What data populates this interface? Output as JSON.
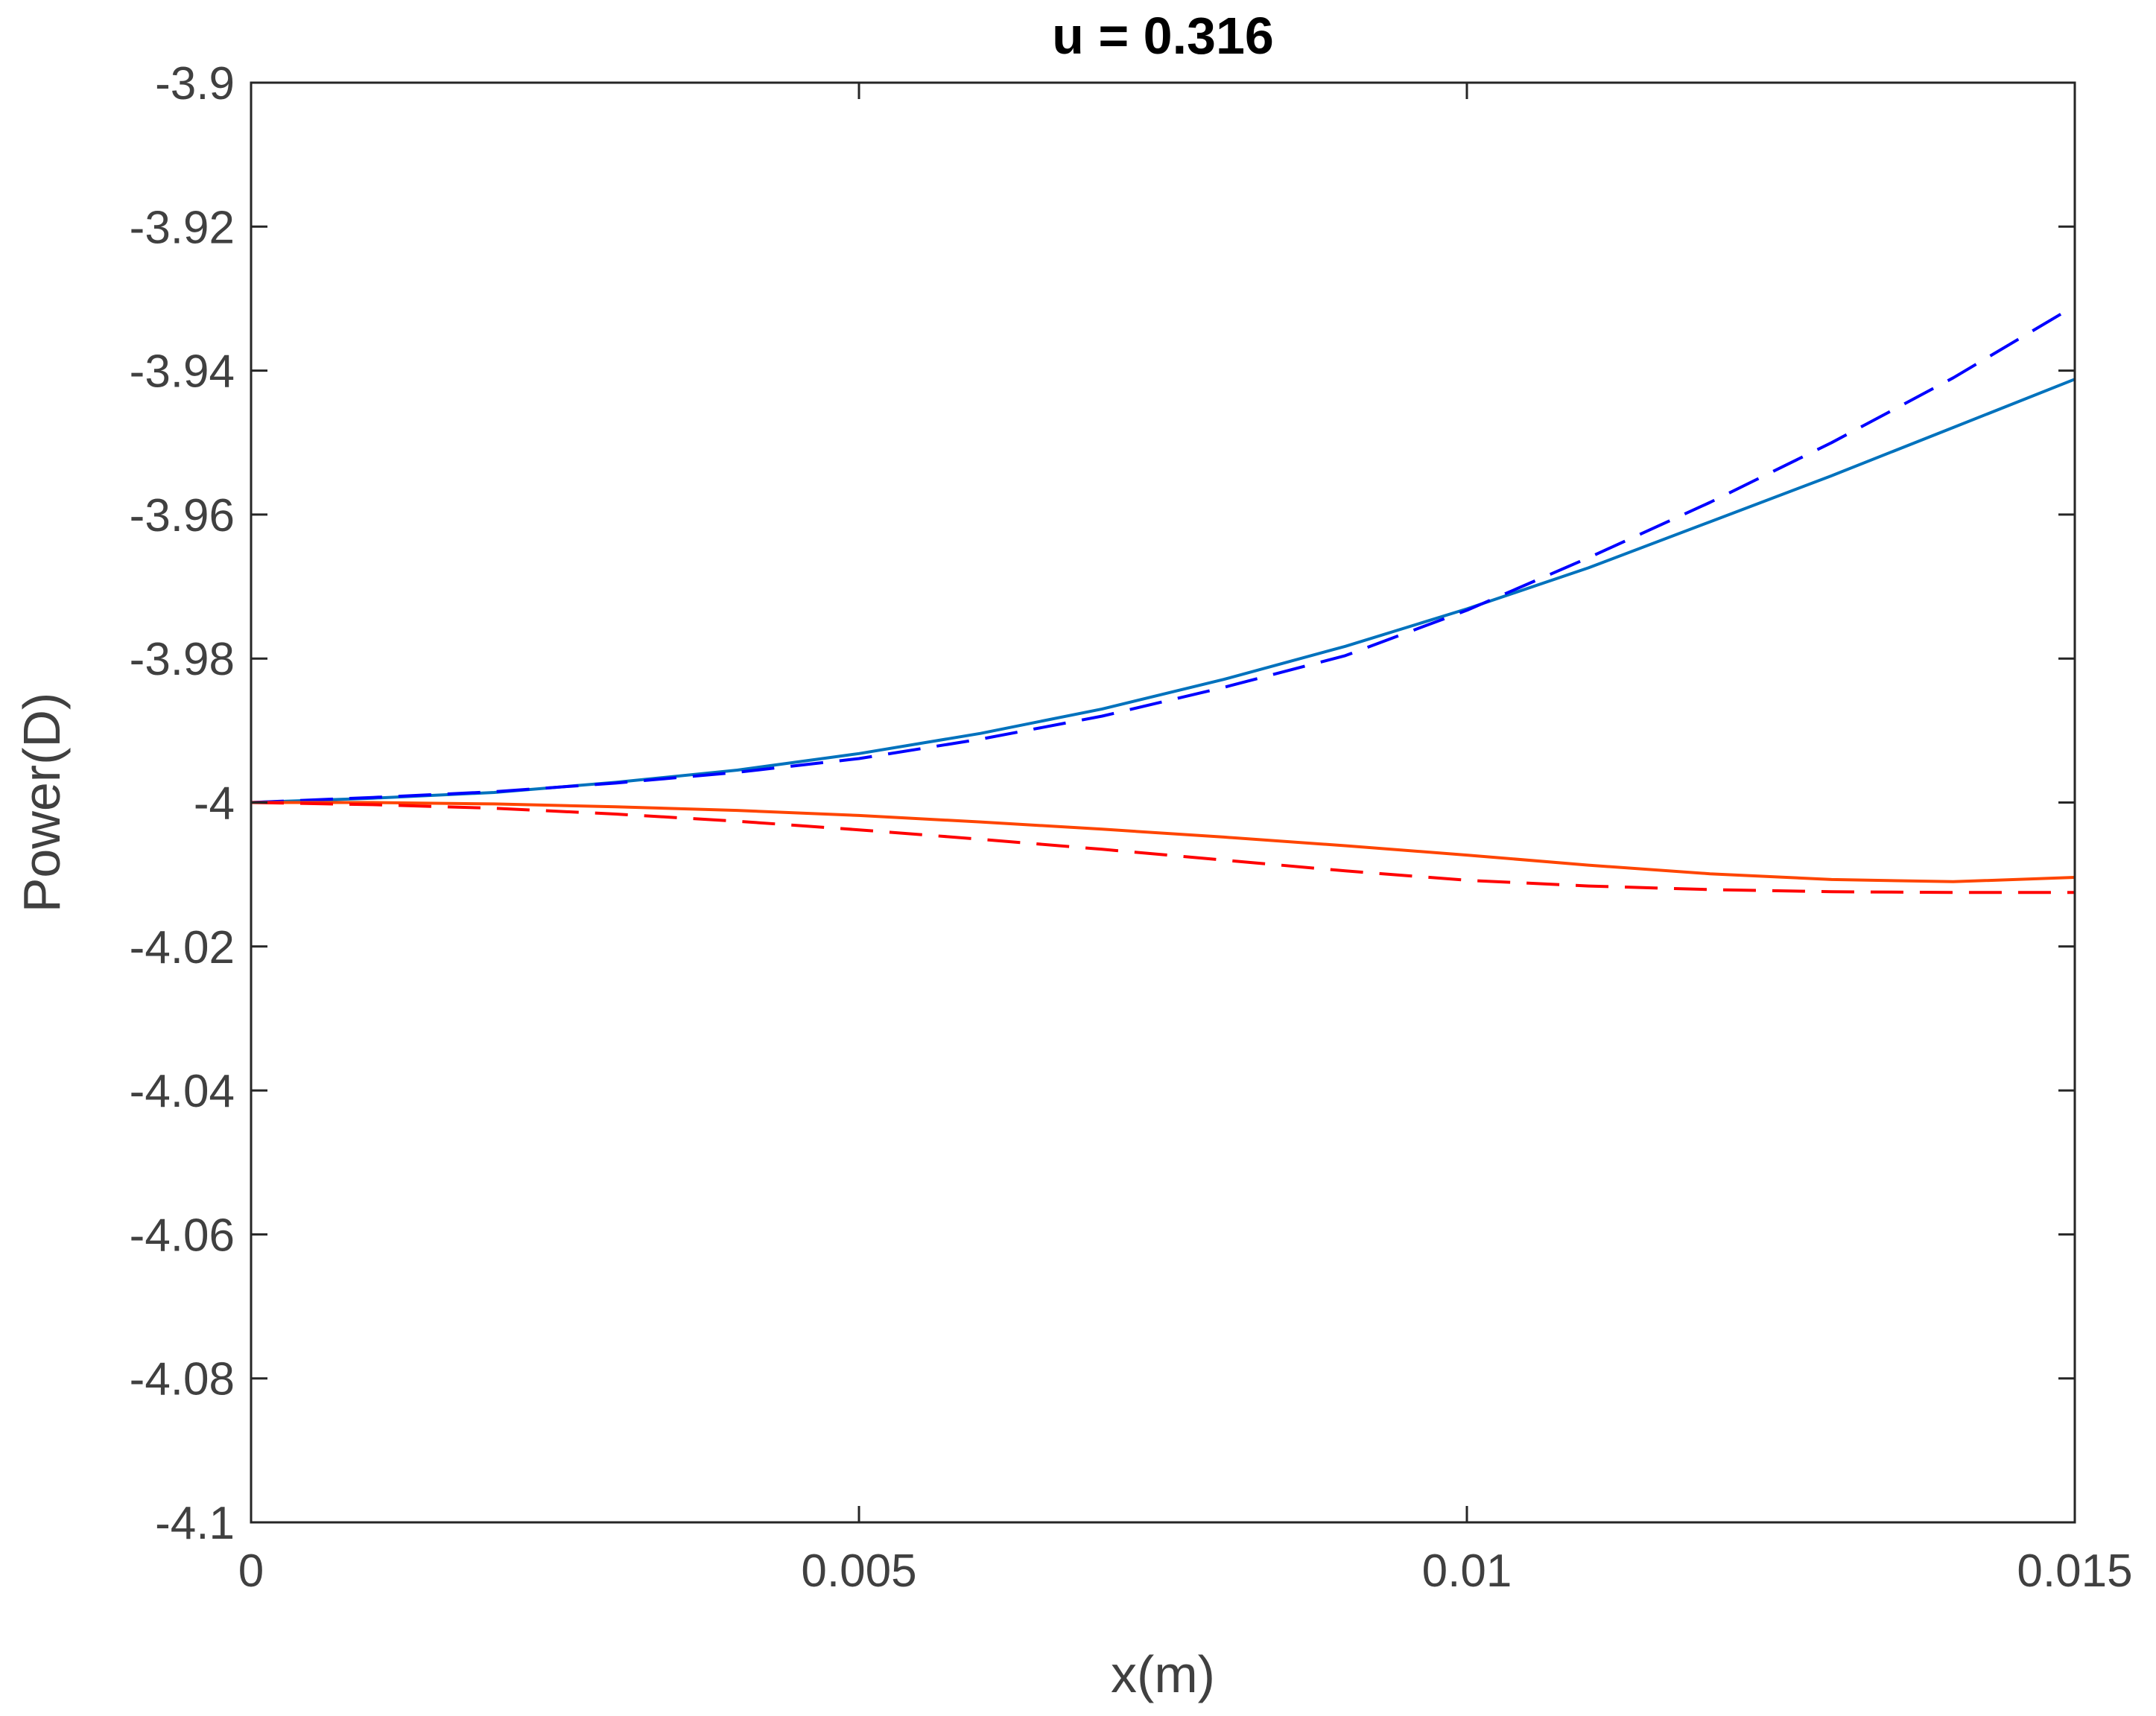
{
  "chart_data": {
    "type": "line",
    "title": "u = 0.316",
    "xlabel": "x(m)",
    "ylabel": "Power(D)",
    "xlim": [
      0,
      0.015
    ],
    "ylim": [
      -4.1,
      -3.9
    ],
    "xticks": [
      0,
      0.005,
      0.01,
      0.015
    ],
    "xtick_labels": [
      "0",
      "0.005",
      "0.01",
      "0.015"
    ],
    "yticks": [
      -4.1,
      -4.08,
      -4.06,
      -4.04,
      -4.02,
      -4,
      -3.98,
      -3.96,
      -3.94,
      -3.92,
      -3.9
    ],
    "ytick_labels": [
      "-4.1",
      "-4.08",
      "-4.06",
      "-4.04",
      "-4.02",
      "-4",
      "-3.98",
      "-3.96",
      "-3.94",
      "-3.92",
      "-3.9"
    ],
    "grid": false,
    "box": true,
    "series": [
      {
        "color": "#0072bd",
        "style": "solid",
        "x": [
          0,
          0.001,
          0.002,
          0.003,
          0.004,
          0.005,
          0.006,
          0.007,
          0.008,
          0.009,
          0.01,
          0.011,
          0.012,
          0.013,
          0.014,
          0.015
        ],
        "y": [
          -4.0,
          -3.9994,
          -3.9986,
          -3.9972,
          -3.9955,
          -3.9932,
          -3.9904,
          -3.987,
          -3.9829,
          -3.9783,
          -3.9731,
          -3.9674,
          -3.961,
          -3.9546,
          -3.9479,
          -3.9412
        ]
      },
      {
        "color": "#0000ff",
        "style": "dashed",
        "x": [
          0,
          0.001,
          0.002,
          0.003,
          0.004,
          0.005,
          0.006,
          0.007,
          0.008,
          0.009,
          0.01,
          0.011,
          0.012,
          0.013,
          0.014,
          0.015
        ],
        "y": [
          -4.0,
          -3.9993,
          -3.9985,
          -3.9973,
          -3.9958,
          -3.9939,
          -3.9912,
          -3.988,
          -3.984,
          -3.9796,
          -3.9733,
          -3.966,
          -3.9583,
          -3.95,
          -3.941,
          -3.931
        ]
      },
      {
        "color": "#ff4500",
        "style": "solid",
        "x": [
          0,
          0.001,
          0.002,
          0.003,
          0.004,
          0.005,
          0.006,
          0.007,
          0.008,
          0.009,
          0.01,
          0.011,
          0.012,
          0.013,
          0.014,
          0.015
        ],
        "y": [
          -4.0,
          -4.0,
          -4.0002,
          -4.0006,
          -4.0011,
          -4.0018,
          -4.0027,
          -4.0037,
          -4.0048,
          -4.006,
          -4.0073,
          -4.0087,
          -4.0099,
          -4.0107,
          -4.011,
          -4.0104
        ]
      },
      {
        "color": "#ff0000",
        "style": "dashed",
        "x": [
          0,
          0.001,
          0.002,
          0.003,
          0.004,
          0.005,
          0.006,
          0.007,
          0.008,
          0.009,
          0.01,
          0.011,
          0.012,
          0.013,
          0.014,
          0.015
        ],
        "y": [
          -4.0,
          -4.0003,
          -4.0008,
          -4.0016,
          -4.0026,
          -4.0038,
          -4.0051,
          -4.0065,
          -4.008,
          -4.0095,
          -4.0108,
          -4.0116,
          -4.0121,
          -4.0124,
          -4.0125,
          -4.0125
        ]
      }
    ]
  }
}
